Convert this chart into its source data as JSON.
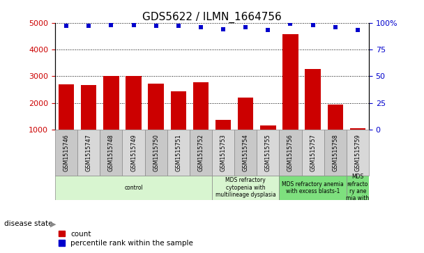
{
  "title": "GDS5622 / ILMN_1664756",
  "samples": [
    "GSM1515746",
    "GSM1515747",
    "GSM1515748",
    "GSM1515749",
    "GSM1515750",
    "GSM1515751",
    "GSM1515752",
    "GSM1515753",
    "GSM1515754",
    "GSM1515755",
    "GSM1515756",
    "GSM1515757",
    "GSM1515758",
    "GSM1515759"
  ],
  "counts": [
    2700,
    2680,
    3000,
    3010,
    2730,
    2440,
    2780,
    1360,
    2200,
    1160,
    4570,
    3280,
    1940,
    1060
  ],
  "percentile_ranks": [
    97,
    97,
    98,
    98,
    97,
    97,
    96,
    94,
    96,
    93,
    99,
    98,
    96,
    93
  ],
  "bar_color": "#cc0000",
  "dot_color": "#0000cc",
  "ylim_left": [
    1000,
    5000
  ],
  "ylim_right": [
    0,
    100
  ],
  "yticks_left": [
    1000,
    2000,
    3000,
    4000,
    5000
  ],
  "yticks_right": [
    0,
    25,
    50,
    75,
    100
  ],
  "yticklabels_right": [
    "0",
    "25",
    "50",
    "75",
    "100%"
  ],
  "disease_groups": [
    {
      "label": "control",
      "start": 0,
      "end": 7,
      "color": "#d8f5d0"
    },
    {
      "label": "MDS refractory\ncytopenia with\nmultilineage dysplasia",
      "start": 7,
      "end": 10,
      "color": "#d8f5d0"
    },
    {
      "label": "MDS refractory anemia\nwith excess blasts-1",
      "start": 10,
      "end": 13,
      "color": "#7ee07e"
    },
    {
      "label": "MDS\nrefracto\nry ane\nmia with",
      "start": 13,
      "end": 14,
      "color": "#7ee07e"
    }
  ],
  "disease_state_label": "disease state",
  "legend_count_label": "count",
  "legend_percentile_label": "percentile rank within the sample",
  "tick_color_left": "#cc0000",
  "tick_color_right": "#0000cc",
  "title_fontsize": 11,
  "axis_fontsize": 8,
  "sample_box_color": "#c8c8c8",
  "sample_box_color2": "#d8d8d8"
}
